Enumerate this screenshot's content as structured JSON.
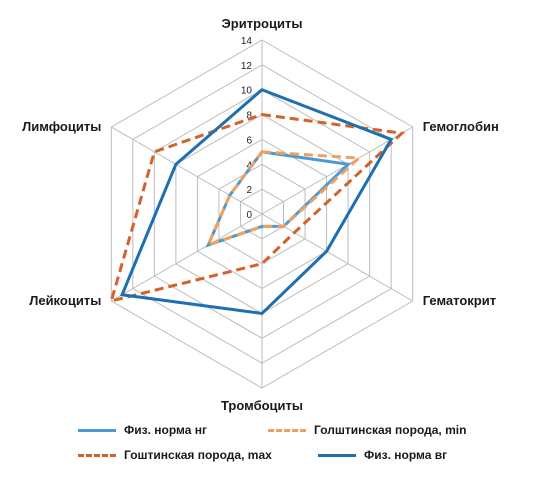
{
  "chart_data": {
    "type": "radar",
    "axes": [
      "Эритроциты",
      "Гемоглобин",
      "Гематокрит",
      "Тромбоциты",
      "Лейкоциты",
      "Лимфоциты"
    ],
    "rlim": [
      0,
      14
    ],
    "ticks": [
      "0",
      "2",
      "4",
      "6",
      "8",
      "10",
      "12",
      "14"
    ],
    "grid": true,
    "legend_position": "bottom",
    "series": [
      {
        "name": "Физ. норма нг",
        "values": [
          5,
          8,
          2,
          1,
          5,
          3
        ],
        "color": "#4a9ad4",
        "dash": "solid"
      },
      {
        "name": "Голштинская порода, min",
        "values": [
          5,
          9,
          2,
          1,
          5,
          3
        ],
        "color": "#f0a060",
        "dash": "dashed"
      },
      {
        "name": "Гоштинская порода, max",
        "values": [
          8,
          13,
          3,
          4,
          14,
          10
        ],
        "color": "#d4622a",
        "dash": "dashed"
      },
      {
        "name": "Физ. норма вг",
        "values": [
          10,
          12,
          6,
          8,
          13,
          8
        ],
        "color": "#1f6fb0",
        "dash": "solid"
      }
    ]
  }
}
